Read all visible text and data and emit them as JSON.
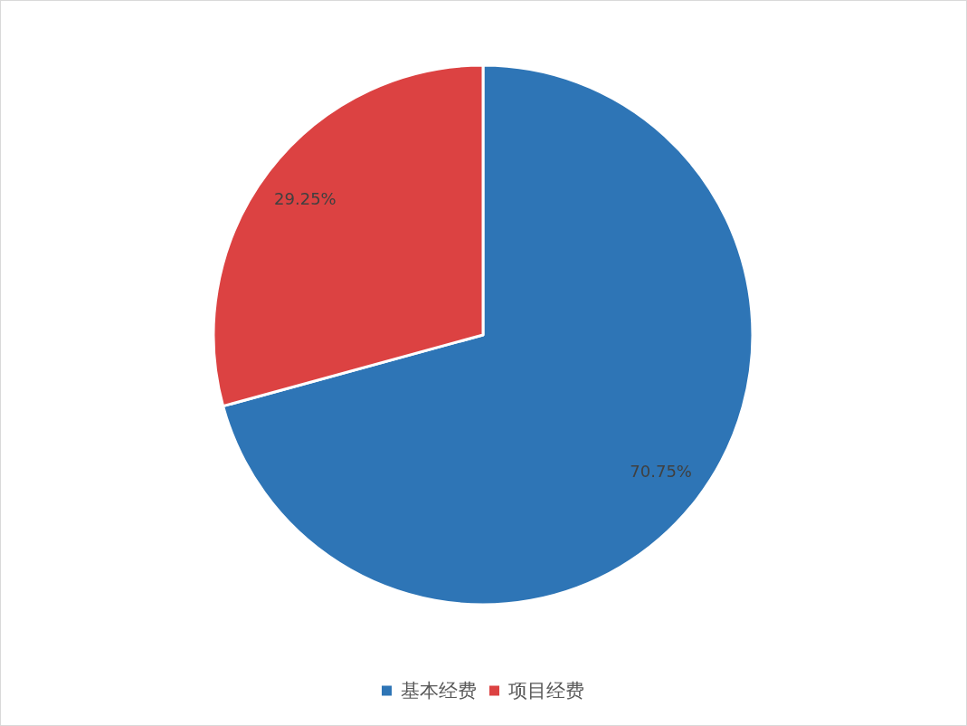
{
  "chart_data": {
    "type": "pie",
    "categories": [
      "基本经费",
      "项目经费"
    ],
    "values": [
      70.75,
      29.25
    ],
    "colors": [
      "#2e75b6",
      "#dc4242"
    ],
    "value_labels": [
      "70.75%",
      "29.25%"
    ],
    "legend": "bottom"
  }
}
